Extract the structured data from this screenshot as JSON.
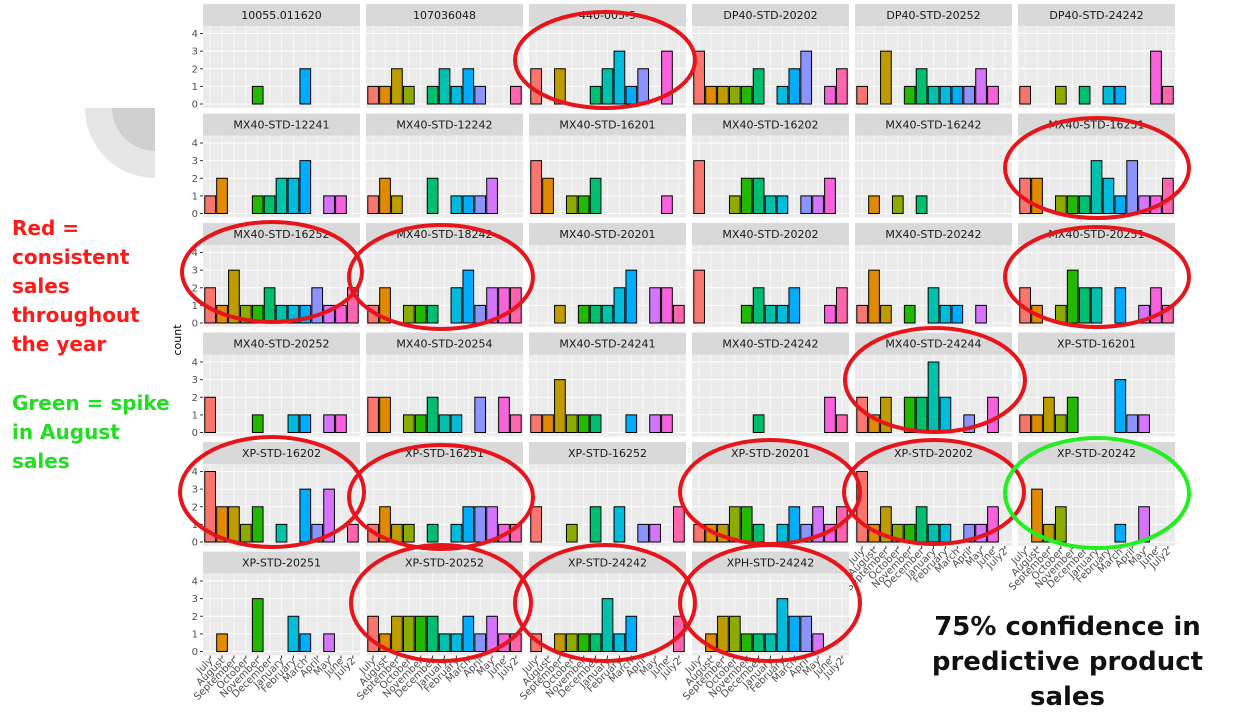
{
  "chart_data": {
    "type": "bar",
    "y_label": "count",
    "categories": [
      "July",
      "August",
      "September",
      "October",
      "November",
      "December",
      "January",
      "February",
      "March",
      "April",
      "May",
      "June",
      "July2"
    ],
    "colors": [
      "#F8766D",
      "#E18A00",
      "#BE9C00",
      "#8CAB00",
      "#24B700",
      "#00BE70",
      "#00C1AB",
      "#00BBDA",
      "#00ACFC",
      "#8B93FF",
      "#D575FE",
      "#F962DD",
      "#FF65AC"
    ],
    "ylim": [
      0,
      4.2
    ],
    "yticks": [
      0,
      1,
      2,
      3,
      4
    ],
    "panels": [
      {
        "title": "10055.011620",
        "values": [
          0,
          0,
          0,
          0,
          1,
          0,
          0,
          0,
          2,
          0,
          0,
          0,
          0
        ]
      },
      {
        "title": "107036048",
        "values": [
          1,
          1,
          2,
          1,
          0,
          1,
          2,
          1,
          2,
          1,
          0,
          0,
          1
        ]
      },
      {
        "title": "440-005-5",
        "values": [
          2,
          0,
          2,
          0,
          0,
          1,
          2,
          3,
          1,
          2,
          0,
          3,
          0
        ]
      },
      {
        "title": "DP40-STD-20202",
        "values": [
          3,
          1,
          1,
          1,
          1,
          2,
          0,
          1,
          2,
          3,
          0,
          1,
          2
        ]
      },
      {
        "title": "DP40-STD-20252",
        "values": [
          1,
          0,
          3,
          0,
          1,
          2,
          1,
          1,
          1,
          1,
          2,
          1,
          0
        ]
      },
      {
        "title": "DP40-STD-24242",
        "values": [
          1,
          0,
          0,
          1,
          0,
          1,
          0,
          1,
          1,
          0,
          0,
          3,
          1
        ]
      },
      {
        "title": "MX40-STD-12241",
        "values": [
          1,
          2,
          0,
          0,
          1,
          1,
          2,
          2,
          3,
          0,
          1,
          1,
          0
        ]
      },
      {
        "title": "MX40-STD-12242",
        "values": [
          1,
          2,
          1,
          0,
          0,
          2,
          0,
          1,
          1,
          1,
          2,
          0,
          0
        ]
      },
      {
        "title": "MX40-STD-16201",
        "values": [
          3,
          2,
          0,
          1,
          1,
          2,
          0,
          0,
          0,
          0,
          0,
          1,
          0
        ]
      },
      {
        "title": "MX40-STD-16202",
        "values": [
          3,
          0,
          0,
          1,
          2,
          2,
          1,
          1,
          0,
          1,
          1,
          2,
          0
        ]
      },
      {
        "title": "MX40-STD-16242",
        "values": [
          0,
          1,
          0,
          1,
          0,
          1,
          0,
          0,
          0,
          0,
          0,
          0,
          0
        ]
      },
      {
        "title": "MX40-STD-16251",
        "values": [
          2,
          2,
          0,
          1,
          1,
          1,
          3,
          2,
          1,
          3,
          1,
          1,
          2
        ]
      },
      {
        "title": "MX40-STD-16252",
        "values": [
          2,
          1,
          3,
          1,
          1,
          2,
          1,
          1,
          1,
          2,
          1,
          1,
          2
        ]
      },
      {
        "title": "MX40-STD-18242",
        "values": [
          1,
          2,
          0,
          1,
          1,
          1,
          0,
          2,
          3,
          1,
          2,
          2,
          2
        ]
      },
      {
        "title": "MX40-STD-20201",
        "values": [
          0,
          0,
          1,
          0,
          1,
          1,
          1,
          2,
          3,
          0,
          2,
          2,
          1
        ]
      },
      {
        "title": "MX40-STD-20202",
        "values": [
          3,
          0,
          0,
          0,
          1,
          2,
          1,
          1,
          2,
          0,
          0,
          1,
          2
        ]
      },
      {
        "title": "MX40-STD-20242",
        "values": [
          1,
          3,
          1,
          0,
          1,
          0,
          2,
          1,
          1,
          0,
          1,
          0,
          0
        ]
      },
      {
        "title": "MX40-STD-20251",
        "values": [
          2,
          1,
          0,
          1,
          3,
          2,
          2,
          0,
          2,
          0,
          1,
          2,
          1
        ]
      },
      {
        "title": "MX40-STD-20252",
        "values": [
          2,
          0,
          0,
          0,
          1,
          0,
          0,
          1,
          1,
          0,
          1,
          1,
          0
        ]
      },
      {
        "title": "MX40-STD-20254",
        "values": [
          2,
          2,
          0,
          1,
          1,
          2,
          1,
          1,
          0,
          2,
          0,
          2,
          1
        ]
      },
      {
        "title": "MX40-STD-24241",
        "values": [
          1,
          1,
          3,
          1,
          1,
          1,
          0,
          0,
          1,
          0,
          1,
          1,
          0
        ]
      },
      {
        "title": "MX40-STD-24242",
        "values": [
          0,
          0,
          0,
          0,
          0,
          1,
          0,
          0,
          0,
          0,
          0,
          2,
          1
        ]
      },
      {
        "title": "MX40-STD-24244",
        "values": [
          2,
          1,
          2,
          0,
          2,
          2,
          4,
          2,
          0,
          1,
          0,
          2,
          0
        ]
      },
      {
        "title": "XP-STD-16201",
        "values": [
          1,
          1,
          2,
          1,
          2,
          0,
          0,
          0,
          3,
          1,
          1,
          0,
          0
        ]
      },
      {
        "title": "XP-STD-16202",
        "values": [
          4,
          2,
          2,
          1,
          2,
          0,
          1,
          0,
          3,
          1,
          3,
          0,
          1
        ]
      },
      {
        "title": "XP-STD-16251",
        "values": [
          1,
          2,
          1,
          1,
          0,
          1,
          0,
          1,
          2,
          2,
          2,
          1,
          1
        ]
      },
      {
        "title": "XP-STD-16252",
        "values": [
          2,
          0,
          0,
          1,
          0,
          2,
          0,
          2,
          0,
          1,
          1,
          0,
          2
        ]
      },
      {
        "title": "XP-STD-20201",
        "values": [
          1,
          1,
          1,
          2,
          2,
          1,
          0,
          1,
          2,
          1,
          2,
          1,
          2
        ]
      },
      {
        "title": "XP-STD-20202",
        "values": [
          4,
          1,
          2,
          1,
          1,
          2,
          1,
          1,
          0,
          1,
          1,
          2,
          0
        ]
      },
      {
        "title": "XP-STD-20242",
        "values": [
          0,
          3,
          1,
          2,
          0,
          0,
          0,
          0,
          1,
          0,
          2,
          0,
          0
        ]
      },
      {
        "title": "XP-STD-20251",
        "values": [
          0,
          1,
          0,
          0,
          3,
          0,
          0,
          2,
          1,
          0,
          1,
          0,
          0
        ]
      },
      {
        "title": "XP-STD-20252",
        "values": [
          2,
          1,
          2,
          2,
          2,
          2,
          1,
          1,
          2,
          1,
          2,
          1,
          1
        ]
      },
      {
        "title": "XP-STD-24242",
        "values": [
          1,
          0,
          1,
          1,
          1,
          1,
          3,
          1,
          2,
          0,
          0,
          0,
          2
        ]
      },
      {
        "title": "XPH-STD-24242",
        "values": [
          0,
          1,
          2,
          2,
          1,
          1,
          1,
          3,
          2,
          2,
          1,
          0,
          0
        ]
      }
    ]
  },
  "annotations": {
    "red_note": "Red = consistent sales throughout the year",
    "green_note": "Green = spike in August sales",
    "confidence": "75% confidence in predictive product sales"
  }
}
